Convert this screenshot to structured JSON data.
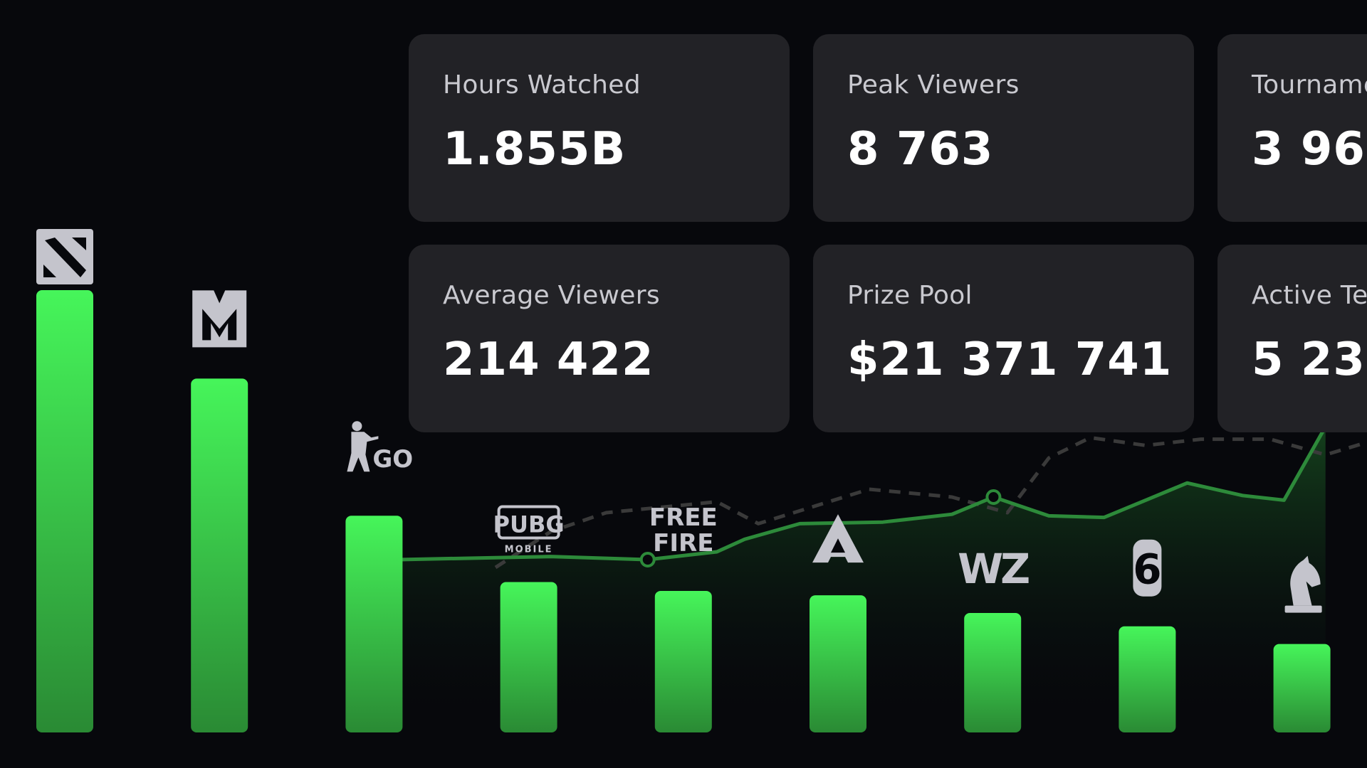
{
  "stats": [
    {
      "label": "Hours Watched",
      "value": "1.855B"
    },
    {
      "label": "Peak Viewers",
      "value": "8 763"
    },
    {
      "label": "Tourname",
      "value": "3 96"
    },
    {
      "label": "Average Viewers",
      "value": "214 422"
    },
    {
      "label": "Prize Pool",
      "value": "$21 371 741"
    },
    {
      "label": "Active Te",
      "value": "5 23"
    }
  ],
  "colors": {
    "bar_top": "#46f55a",
    "bar_bottom": "#2a8a34",
    "line": "#2d8a3a",
    "dashed": "#3a3a3a",
    "card_bg": "#222226",
    "icon": "#c4c4cc"
  },
  "chart_data": {
    "type": "bar",
    "categories": [
      "dota-2",
      "mobile-legends",
      "cs-go",
      "pubg-mobile",
      "free-fire",
      "apex-legends",
      "warzone",
      "rainbow-six",
      "chess"
    ],
    "category_labels": {
      "cs-go": "GO",
      "pubg-mobile": "PUBG",
      "pubg-mobile-sub": "MOBILE",
      "free-fire": "FREE FIRE",
      "warzone": "WZ",
      "rainbow-six": "6"
    },
    "values": [
      100,
      80,
      49,
      34,
      32,
      31,
      27,
      24,
      20
    ],
    "ylim": [
      0,
      100
    ],
    "xlabel": "",
    "ylabel": "",
    "title": "",
    "overlay_lines": {
      "solid": [
        {
          "x": 0.3,
          "y": 0.15
        },
        {
          "x": 0.41,
          "y": 0.17
        },
        {
          "x": 0.48,
          "y": 0.15
        },
        {
          "x": 0.53,
          "y": 0.2
        },
        {
          "x": 0.55,
          "y": 0.28
        },
        {
          "x": 0.59,
          "y": 0.38
        },
        {
          "x": 0.65,
          "y": 0.39
        },
        {
          "x": 0.7,
          "y": 0.44
        },
        {
          "x": 0.73,
          "y": 0.55
        },
        {
          "x": 0.77,
          "y": 0.43
        },
        {
          "x": 0.81,
          "y": 0.42
        },
        {
          "x": 0.84,
          "y": 0.53
        },
        {
          "x": 0.87,
          "y": 0.64
        },
        {
          "x": 0.91,
          "y": 0.56
        },
        {
          "x": 0.94,
          "y": 0.53
        },
        {
          "x": 0.97,
          "y": 1.0
        }
      ],
      "dashed": [
        {
          "x": 0.37,
          "y": 0.1
        },
        {
          "x": 0.41,
          "y": 0.33
        },
        {
          "x": 0.45,
          "y": 0.45
        },
        {
          "x": 0.53,
          "y": 0.52
        },
        {
          "x": 0.56,
          "y": 0.38
        },
        {
          "x": 0.6,
          "y": 0.49
        },
        {
          "x": 0.64,
          "y": 0.6
        },
        {
          "x": 0.7,
          "y": 0.55
        },
        {
          "x": 0.74,
          "y": 0.45
        },
        {
          "x": 0.77,
          "y": 0.8
        },
        {
          "x": 0.8,
          "y": 0.93
        },
        {
          "x": 0.84,
          "y": 0.88
        },
        {
          "x": 0.88,
          "y": 0.92
        },
        {
          "x": 0.93,
          "y": 0.92
        },
        {
          "x": 0.97,
          "y": 0.82
        },
        {
          "x": 1.0,
          "y": 0.9
        }
      ],
      "markers": [
        {
          "line": "solid",
          "index": 2
        },
        {
          "line": "solid",
          "index": 8
        }
      ]
    }
  }
}
